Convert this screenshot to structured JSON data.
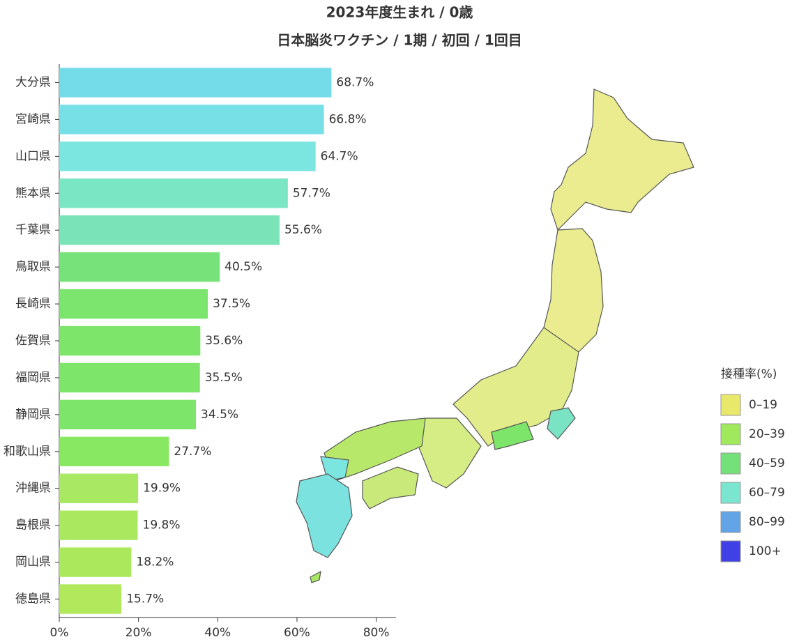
{
  "chart_data": {
    "type": "bar",
    "orientation": "horizontal",
    "title": "2023年度生まれ / 0歳",
    "subtitle": "日本脳炎ワクチン / 1期 / 初回 / 1回目",
    "categories": [
      "大分県",
      "宮崎県",
      "山口県",
      "熊本県",
      "千葉県",
      "鳥取県",
      "長崎県",
      "佐賀県",
      "福岡県",
      "静岡県",
      "和歌山県",
      "沖縄県",
      "島根県",
      "岡山県",
      "徳島県"
    ],
    "values": [
      68.7,
      66.8,
      64.7,
      57.7,
      55.6,
      40.5,
      37.5,
      35.6,
      35.5,
      34.5,
      27.7,
      19.9,
      19.8,
      18.2,
      15.7
    ],
    "value_labels": [
      "68.7%",
      "66.8%",
      "64.7%",
      "57.7%",
      "55.6%",
      "40.5%",
      "37.5%",
      "35.6%",
      "35.5%",
      "34.5%",
      "27.7%",
      "19.9%",
      "19.8%",
      "18.2%",
      "15.7%"
    ],
    "colors": [
      "#74dce8",
      "#77e0e6",
      "#7be6e0",
      "#7be6c3",
      "#7ae3b8",
      "#78e27a",
      "#7be56e",
      "#7de56a",
      "#7de56a",
      "#7de56a",
      "#88e862",
      "#a8e862",
      "#aae85f",
      "#ace85c",
      "#b2e85c"
    ],
    "xlim": [
      0,
      85
    ],
    "xticks": [
      {
        "value": 0,
        "label": "0%"
      },
      {
        "value": 20,
        "label": "20%"
      },
      {
        "value": 40,
        "label": "40%"
      },
      {
        "value": 60,
        "label": "60%"
      },
      {
        "value": 80,
        "label": "80%"
      }
    ],
    "legend": {
      "title": "接種率(%)",
      "items": [
        {
          "label": "0–19",
          "color": "#e8e86a"
        },
        {
          "label": "20–39",
          "color": "#a0e85c"
        },
        {
          "label": "40–59",
          "color": "#74e07a"
        },
        {
          "label": "60–79",
          "color": "#7ae6cf"
        },
        {
          "label": "80–99",
          "color": "#62a4e6"
        },
        {
          "label": "100+",
          "color": "#4040e6"
        }
      ]
    }
  }
}
